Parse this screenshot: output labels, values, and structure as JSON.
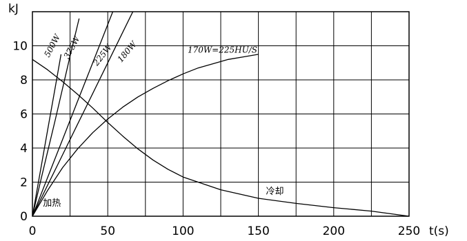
{
  "chart_data": {
    "type": "line",
    "xlabel": "t(s)",
    "ylabel": "kJ",
    "xlim": [
      0,
      250
    ],
    "ylim": [
      0,
      12
    ],
    "grid": true,
    "x_ticks": [
      {
        "value": 0,
        "label": "0"
      },
      {
        "value": 50,
        "label": "50"
      },
      {
        "value": 100,
        "label": "100"
      },
      {
        "value": 150,
        "label": "150"
      },
      {
        "value": 200,
        "label": "200"
      },
      {
        "value": 250,
        "label": "250"
      }
    ],
    "y_ticks": [
      {
        "value": 0,
        "label": "0"
      },
      {
        "value": 2,
        "label": "2"
      },
      {
        "value": 4,
        "label": "4"
      },
      {
        "value": 6,
        "label": "6"
      },
      {
        "value": 8,
        "label": "8"
      },
      {
        "value": 10,
        "label": "10"
      }
    ],
    "series": [
      {
        "name": "500W",
        "x": [
          0,
          5,
          10,
          15,
          19
        ],
        "y": [
          0,
          2.5,
          5.0,
          7.5,
          9.5
        ]
      },
      {
        "name": "375W",
        "x": [
          0,
          5,
          10,
          15,
          20,
          25,
          31
        ],
        "y": [
          0,
          1.9,
          3.75,
          5.6,
          7.5,
          9.4,
          11.6
        ]
      },
      {
        "name": "225W",
        "x": [
          0,
          10,
          20,
          30,
          40,
          50,
          60
        ],
        "y": [
          0,
          2.25,
          4.5,
          6.75,
          9.0,
          11.25,
          13.5
        ]
      },
      {
        "name": "180W",
        "x": [
          0,
          10,
          20,
          30,
          40,
          50,
          60,
          70
        ],
        "y": [
          0,
          1.8,
          3.6,
          5.4,
          7.2,
          9.0,
          10.8,
          12.6
        ]
      },
      {
        "name": "170W=225HU/S",
        "x": [
          0,
          10,
          20,
          30,
          40,
          50,
          60,
          70,
          80,
          90,
          100,
          110,
          120,
          130,
          140,
          150
        ],
        "y": [
          0,
          1.5,
          2.85,
          3.95,
          4.9,
          5.7,
          6.4,
          7.0,
          7.5,
          7.95,
          8.35,
          8.7,
          8.95,
          9.2,
          9.35,
          9.5
        ]
      },
      {
        "name": "冷却",
        "x": [
          0,
          10,
          20,
          30,
          40,
          50,
          60,
          70,
          80,
          90,
          100,
          125,
          150,
          175,
          200,
          225,
          250
        ],
        "y": [
          9.2,
          8.6,
          7.9,
          7.15,
          6.35,
          5.5,
          4.7,
          3.95,
          3.3,
          2.75,
          2.3,
          1.55,
          1.05,
          0.75,
          0.5,
          0.3,
          0
        ]
      }
    ],
    "annotations": [
      {
        "text": "500W",
        "series": "500W"
      },
      {
        "text": "375W",
        "series": "375W"
      },
      {
        "text": "225W",
        "series": "225W"
      },
      {
        "text": "180W",
        "series": "180W"
      },
      {
        "text": "170W=225HU/S",
        "series": "170W=225HU/S"
      },
      {
        "text": "冷却",
        "series": "冷却"
      },
      {
        "text": "加热",
        "series": "heating-region"
      }
    ]
  }
}
